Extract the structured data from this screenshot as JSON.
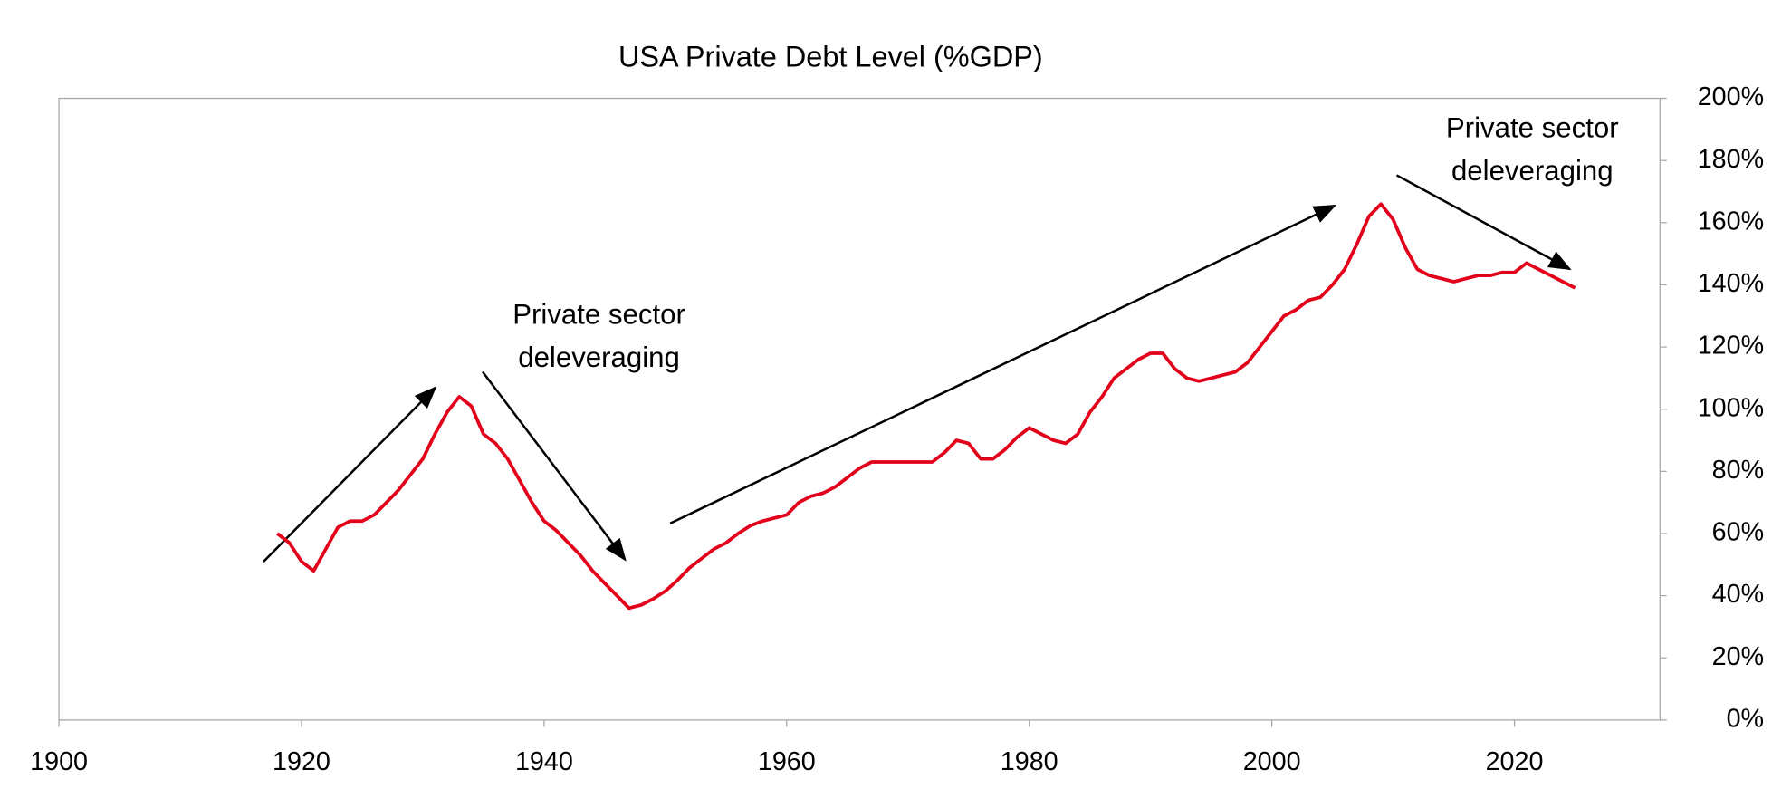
{
  "chart_data": {
    "type": "line",
    "title": "USA Private Debt Level (%GDP)",
    "annotations": [
      [
        "Private sector",
        "deleveraging"
      ],
      [
        "Private sector",
        "deleveraging"
      ]
    ],
    "xlim": [
      1900,
      2032
    ],
    "xticks": [
      1900,
      1920,
      1940,
      1960,
      1980,
      2000,
      2020
    ],
    "ylim": [
      0,
      200
    ],
    "yticks": [
      {
        "value": 0,
        "label": "0%"
      },
      {
        "value": 20,
        "label": "20%"
      },
      {
        "value": 40,
        "label": "40%"
      },
      {
        "value": 60,
        "label": "60%"
      },
      {
        "value": 80,
        "label": "80%"
      },
      {
        "value": 100,
        "label": "100%"
      },
      {
        "value": 120,
        "label": "120%"
      },
      {
        "value": 140,
        "label": "140%"
      },
      {
        "value": 160,
        "label": "160%"
      },
      {
        "value": 180,
        "label": "180%"
      },
      {
        "value": 200,
        "label": "200%"
      }
    ],
    "yaxis_side": "right",
    "x": [
      1918,
      1919,
      1920,
      1921,
      1922,
      1923,
      1924,
      1925,
      1926,
      1927,
      1928,
      1929,
      1930,
      1931,
      1932,
      1933,
      1934,
      1935,
      1936,
      1937,
      1938,
      1939,
      1940,
      1941,
      1942,
      1943,
      1944,
      1945,
      1946,
      1947,
      1948,
      1949,
      1950,
      1951,
      1952,
      1953,
      1954,
      1955,
      1956,
      1957,
      1958,
      1959,
      1960,
      1961,
      1962,
      1963,
      1964,
      1965,
      1966,
      1967,
      1968,
      1969,
      1970,
      1971,
      1972,
      1973,
      1974,
      1975,
      1976,
      1977,
      1978,
      1979,
      1980,
      1981,
      1982,
      1983,
      1984,
      1985,
      1986,
      1987,
      1988,
      1989,
      1990,
      1991,
      1992,
      1993,
      1994,
      1995,
      1996,
      1997,
      1998,
      1999,
      2000,
      2001,
      2002,
      2003,
      2004,
      2005,
      2006,
      2007,
      2008,
      2009,
      2010,
      2011,
      2012,
      2013,
      2014,
      2015,
      2016,
      2017,
      2018,
      2019,
      2020,
      2021,
      2022,
      2023,
      2024,
      2025
    ],
    "series": [
      {
        "color": "#e2001a",
        "values": [
          60,
          57,
          51,
          48,
          55,
          62,
          64,
          64,
          66,
          70,
          74,
          79,
          84,
          92,
          99,
          104,
          101,
          92,
          89,
          84,
          77,
          70,
          64,
          61,
          57,
          53,
          48,
          44,
          40,
          36,
          37,
          39,
          41.5,
          45,
          49,
          52,
          55,
          57,
          60,
          62.5,
          64,
          65,
          66,
          70,
          72,
          73,
          75,
          78,
          81,
          83,
          83,
          83,
          83,
          83,
          83,
          86,
          90,
          89,
          84,
          84,
          87,
          91,
          94,
          92,
          90,
          89,
          92,
          99,
          104,
          110,
          113,
          116,
          118,
          118,
          113,
          110,
          109,
          110,
          111,
          112,
          115,
          120,
          125,
          130,
          132,
          135,
          136,
          140,
          145,
          153,
          162,
          166,
          161,
          152,
          145,
          143,
          142,
          141,
          142,
          143,
          143,
          144,
          144,
          147,
          145,
          143,
          141,
          139
        ]
      }
    ]
  }
}
